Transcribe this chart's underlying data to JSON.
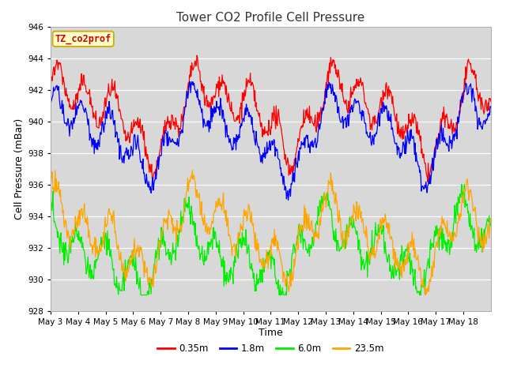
{
  "title": "Tower CO2 Profile Cell Pressure",
  "xlabel": "Time",
  "ylabel": "Cell Pressure (mBar)",
  "ylim": [
    928,
    946
  ],
  "yticks": [
    928,
    930,
    932,
    934,
    936,
    938,
    940,
    942,
    944,
    946
  ],
  "legend_label": "TZ_co2prof",
  "series_labels": [
    "0.35m",
    "1.8m",
    "6.0m",
    "23.5m"
  ],
  "series_colors": [
    "#ff0000",
    "#0000ff",
    "#00ee00",
    "#ffa500"
  ],
  "xtick_labels": [
    "May 3",
    "May 4",
    "May 5",
    "May 6",
    "May 7",
    "May 8",
    "May 9",
    "May 10",
    "May 11",
    "May 12",
    "May 13",
    "May 14",
    "May 15",
    "May 16",
    "May 17",
    "May 18"
  ],
  "plot_bg": "#d8d8d8",
  "title_fontsize": 11,
  "label_fontsize": 9,
  "tick_fontsize": 7.5,
  "legend_fontsize": 8.5,
  "annot_fontsize": 8.5
}
